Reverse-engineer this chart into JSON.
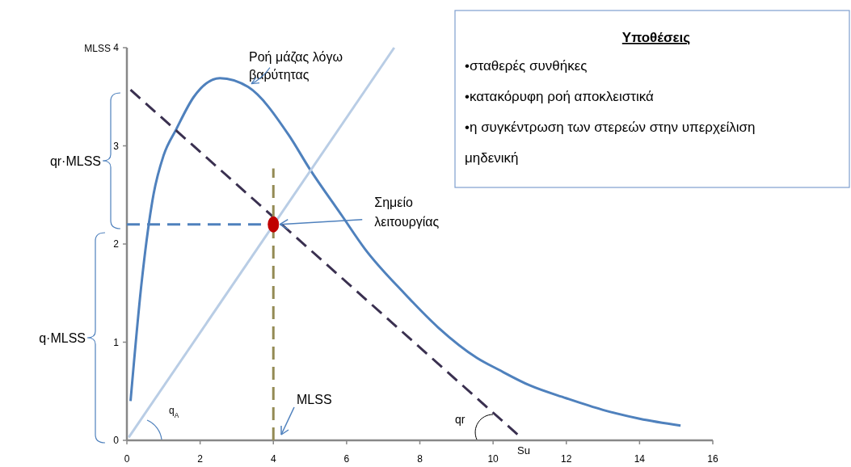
{
  "chart_data": {
    "type": "line",
    "ylabel": "MLSS",
    "xlim": [
      0,
      16
    ],
    "xticks": [
      0,
      2,
      4,
      6,
      8,
      10,
      12,
      14,
      16
    ],
    "ylim": [
      0,
      4
    ],
    "yticks": [
      0,
      1,
      2,
      3,
      4
    ],
    "grid": false,
    "series": [
      {
        "name": "Ροή μάζας λόγω βαρύτητας",
        "color": "#4f81bd",
        "line_style": "solid",
        "x": [
          0.1,
          0.4,
          0.73,
          1.0,
          1.35,
          1.83,
          2.54,
          3.31,
          4.42,
          5.0,
          5.87,
          6.5,
          7.57,
          8.5,
          9.56,
          10.15,
          11.0,
          11.99,
          13.0,
          14.0,
          15.12
        ],
        "values": [
          0.4,
          1.6,
          2.51,
          2.9,
          3.17,
          3.5,
          3.69,
          3.6,
          3.11,
          2.76,
          2.29,
          1.95,
          1.5,
          1.15,
          0.84,
          0.72,
          0.56,
          0.43,
          0.31,
          0.22,
          0.15
        ]
      },
      {
        "color": "#3a3050",
        "line_style": "dashed",
        "x": [
          0.1,
          10.7
        ],
        "values": [
          3.57,
          0.05
        ]
      },
      {
        "color": "#b9cde5",
        "line_style": "solid",
        "x": [
          0.05,
          7.3
        ],
        "values": [
          0.03,
          4.0
        ]
      },
      {
        "color": "#4f81bd",
        "line_style": "dashed",
        "x": [
          0,
          4
        ],
        "values": [
          2.2,
          2.2
        ]
      },
      {
        "color": "#948a54",
        "line_style": "dashed",
        "x": [
          4,
          4
        ],
        "values": [
          0,
          2.77
        ]
      },
      {
        "type": "scatter",
        "marker": "circle",
        "color": "#c00000",
        "x": [
          4
        ],
        "values": [
          2.2
        ]
      }
    ],
    "annotations": [
      {
        "text": "Σημείο λειτουργίας",
        "x": 4,
        "y": 2.2
      },
      "MLSS",
      "q$_{A}$",
      "qr",
      "Su",
      "qr·MLSS",
      "q·MLSS",
      "Υποθέσεις",
      "•σταθερές συνθήκες",
      "•κατακόρυφη ροή αποκλειστικά",
      "•η συγκέντρωση των στερεών στην υπερχείλιση μηδενική"
    ]
  }
}
